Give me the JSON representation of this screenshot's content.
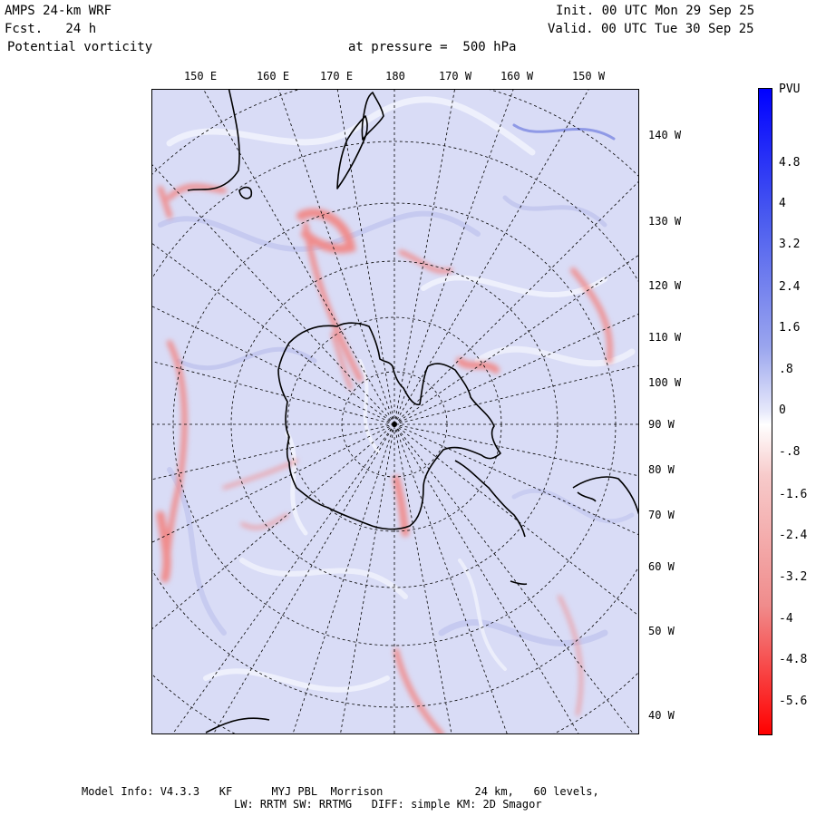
{
  "header": {
    "model": "AMPS 24-km WRF",
    "fcst": "Fcst.   24 h",
    "field": "Potential vorticity",
    "level": "at pressure =  500 hPa",
    "init": "Init. 00 UTC Mon 29 Sep 25",
    "valid": "Valid. 00 UTC Tue 30 Sep 25"
  },
  "map": {
    "top_lon_labels": [
      "150 E",
      "160 E",
      "170 E",
      "180",
      "170 W",
      "160 W",
      "150 W"
    ],
    "right_lon_labels": [
      "140 W",
      "130 W",
      "120 W",
      "110 W",
      "100 W",
      "90 W",
      "80 W",
      "70 W",
      "60 W",
      "50 W",
      "40 W"
    ],
    "background_color": "#d9dcf6",
    "positive_color": "#f08c8c",
    "coast_color": "#000000"
  },
  "colorbar": {
    "unit": "PVU",
    "labels": [
      "4.8",
      "4",
      "3.2",
      "2.4",
      "1.6",
      ".8",
      "0",
      "-.8",
      "-1.6",
      "-2.4",
      "-3.2",
      "-4",
      "-4.8",
      "-5.6"
    ],
    "top_color": "#0000ff",
    "bottom_color": "#ff0000"
  },
  "footer": {
    "line1": "Model Info: V4.3.3   KF      MYJ PBL  Morrison              24 km,   60 levels,",
    "line2": "LW: RRTM SW: RRTMG   DIFF: simple KM: 2D Smagor"
  }
}
